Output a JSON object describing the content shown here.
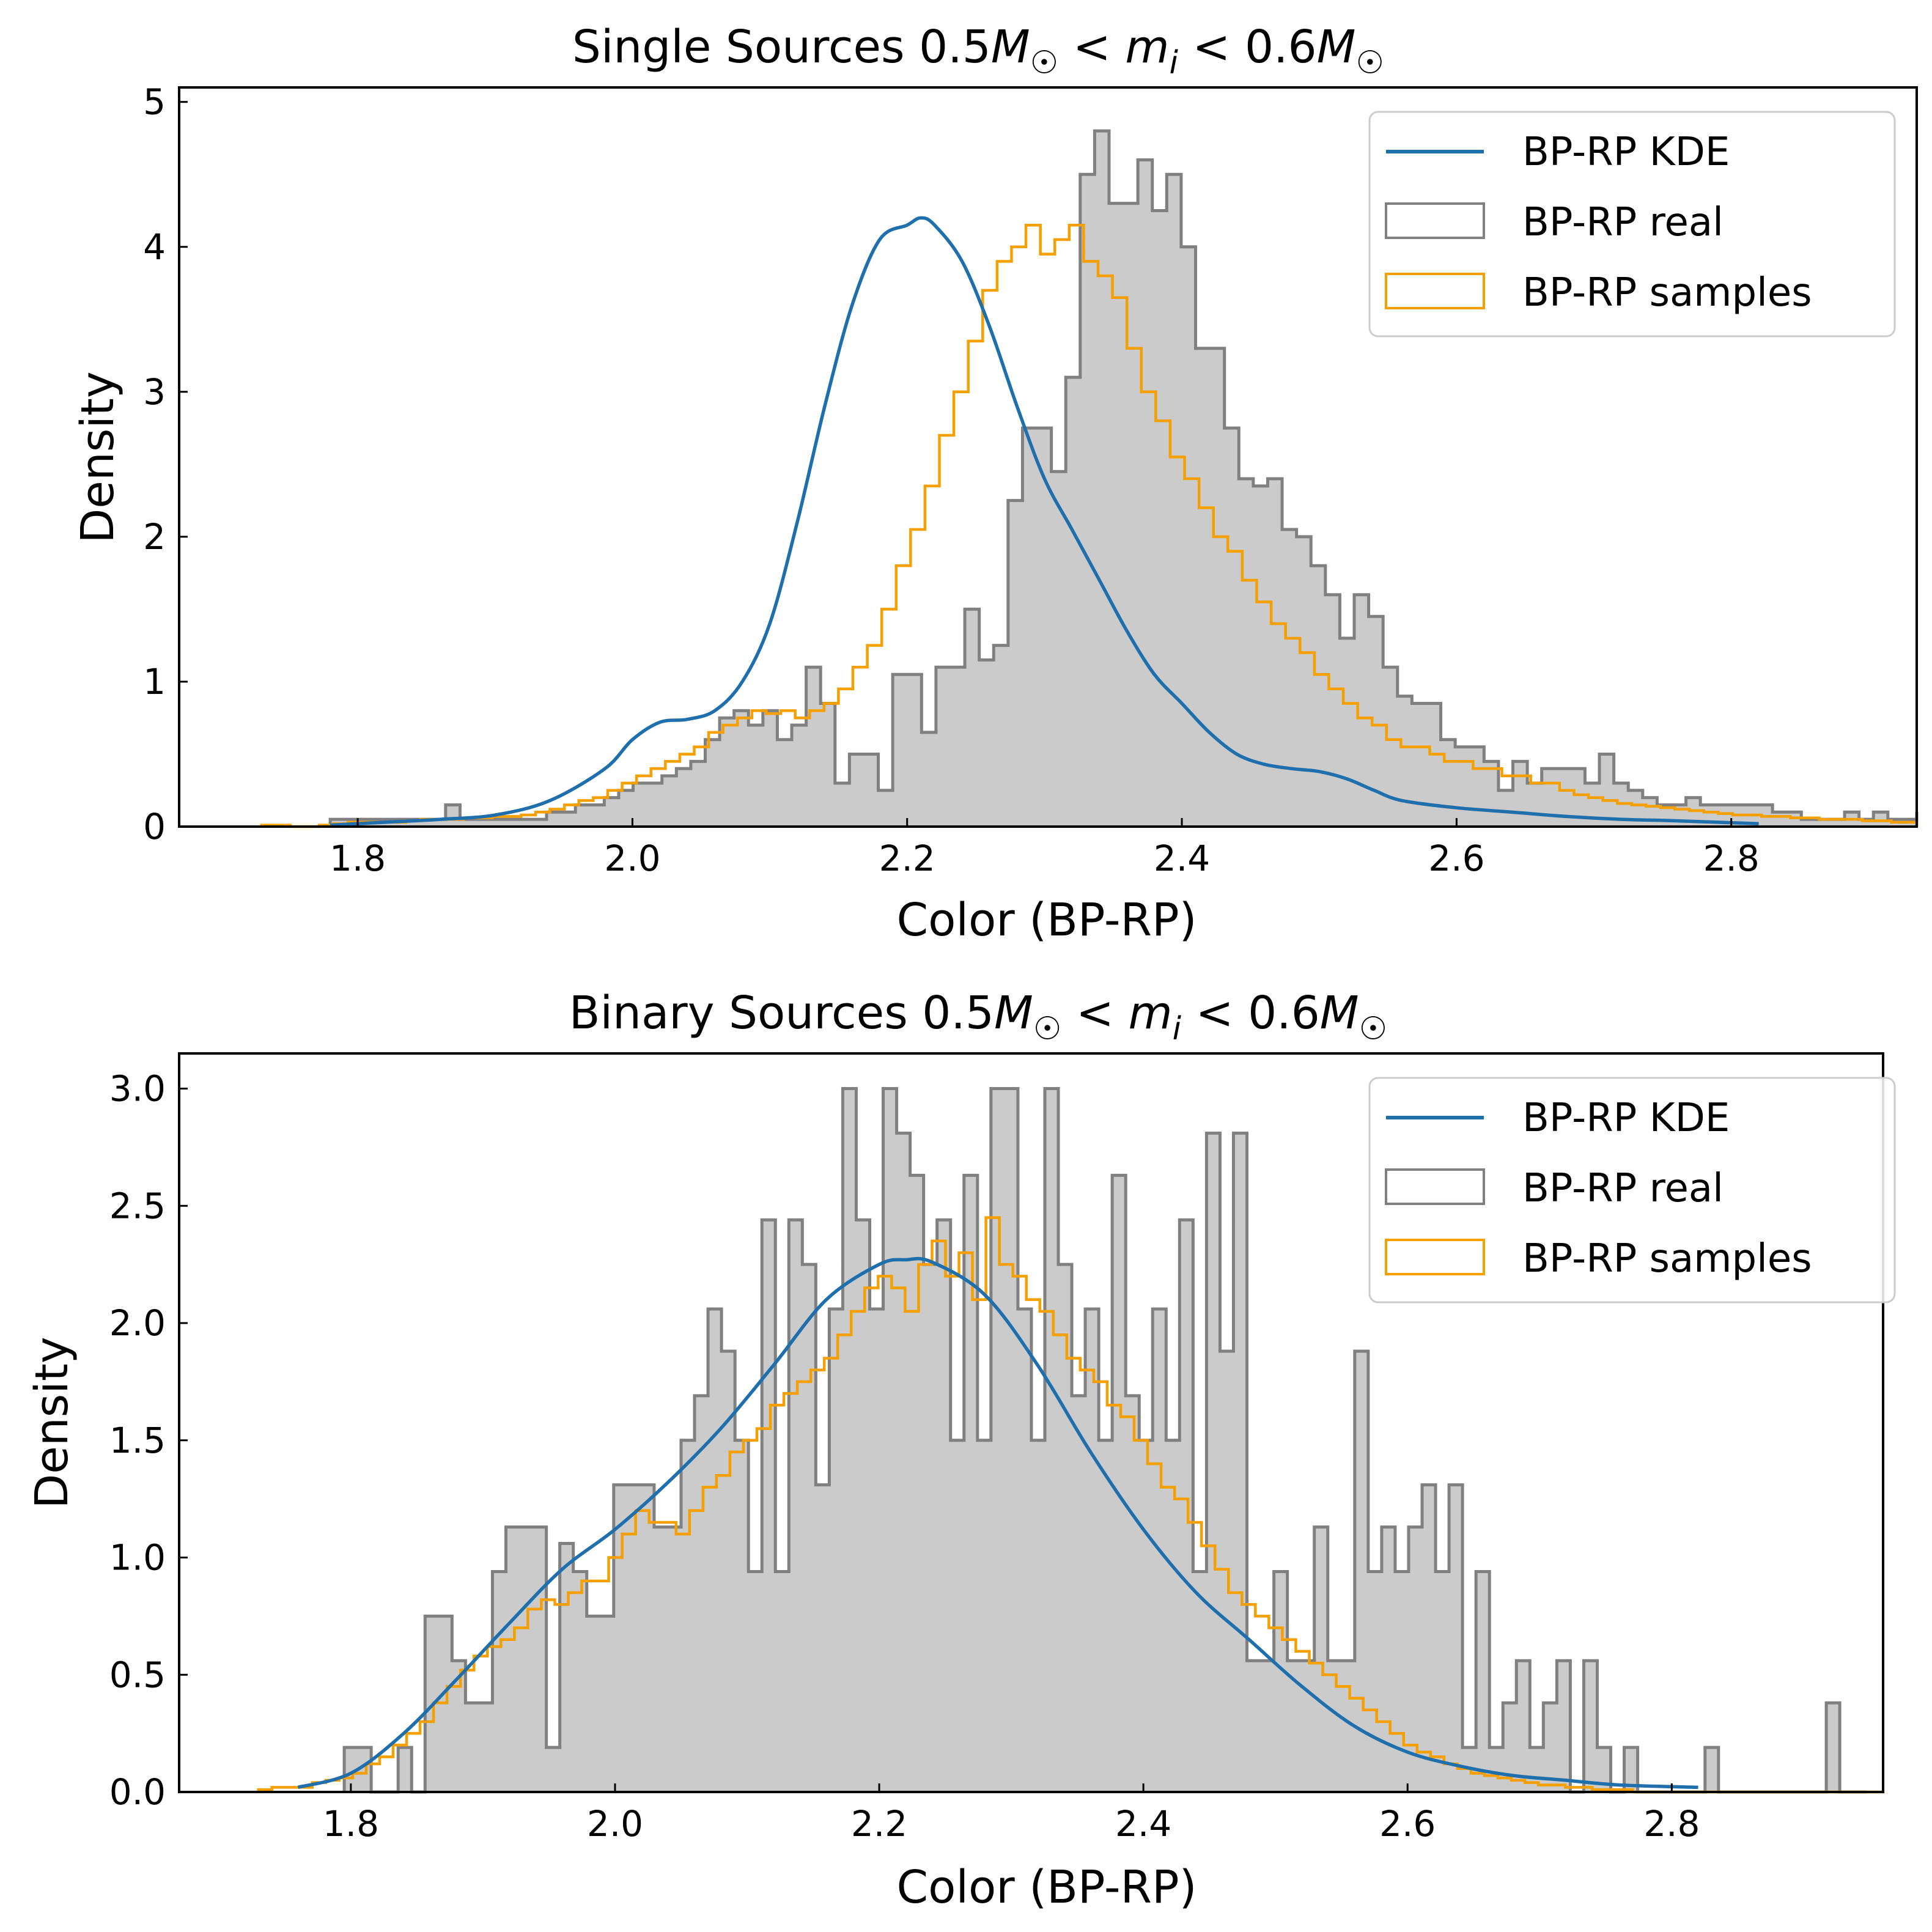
{
  "colors": {
    "kde": "#1f6fad",
    "real_edge": "#808080",
    "real_fill": "#cbcbcb",
    "samples": "#f5a000"
  },
  "chart_data": [
    {
      "type": "histogram",
      "title": "Single Sources 0.5M☉ < mᵢ < 0.6M☉",
      "title_parts": {
        "prefix": "Single Sources 0.5",
        "M": "M",
        "sun": "☉",
        "lt": " < ",
        "m": "m",
        "i": "i",
        "mid": " < 0.6"
      },
      "xlabel": "Color (BP-RP)",
      "ylabel": "Density",
      "xlim": [
        1.67,
        2.935
      ],
      "ylim": [
        0,
        5.1
      ],
      "xticks": [
        1.8,
        2.0,
        2.2,
        2.4,
        2.6,
        2.8
      ],
      "xtick_labels": [
        "1.8",
        "2.0",
        "2.2",
        "2.4",
        "2.6",
        "2.8"
      ],
      "yticks": [
        0,
        1,
        2,
        3,
        4,
        5
      ],
      "ytick_labels": [
        "0",
        "1",
        "2",
        "3",
        "4",
        "5"
      ],
      "legend": {
        "position": "upper right",
        "entries": [
          "BP-RP KDE",
          "BP-RP real",
          "BP-RP samples"
        ]
      },
      "series": [
        {
          "name": "BP-RP real",
          "kind": "histogram",
          "edges_start": 1.78,
          "bin_width": 0.0105,
          "values": [
            0.05,
            0.05,
            0.05,
            0.05,
            0.05,
            0.05,
            0.05,
            0.05,
            0.15,
            0.05,
            0.05,
            0.05,
            0.05,
            0.05,
            0.05,
            0.1,
            0.1,
            0.15,
            0.15,
            0.2,
            0.25,
            0.3,
            0.3,
            0.35,
            0.4,
            0.45,
            0.6,
            0.75,
            0.8,
            0.7,
            0.8,
            0.6,
            0.7,
            1.1,
            0.85,
            0.3,
            0.5,
            0.5,
            0.25,
            1.05,
            1.05,
            0.65,
            1.1,
            1.1,
            1.5,
            1.15,
            1.25,
            2.25,
            2.75,
            2.75,
            2.45,
            3.1,
            4.5,
            4.8,
            4.3,
            4.3,
            4.6,
            4.25,
            4.5,
            4.0,
            3.3,
            3.3,
            2.75,
            2.4,
            2.35,
            2.4,
            2.05,
            2.0,
            1.8,
            1.6,
            1.3,
            1.6,
            1.45,
            1.1,
            0.9,
            0.85,
            0.85,
            0.6,
            0.55,
            0.55,
            0.45,
            0.25,
            0.45,
            0.3,
            0.4,
            0.4,
            0.4,
            0.3,
            0.5,
            0.3,
            0.25,
            0.2,
            0.15,
            0.15,
            0.2,
            0.15,
            0.15,
            0.15,
            0.15,
            0.15,
            0.1,
            0.1,
            0.05,
            0.05,
            0.05,
            0.1,
            0.05,
            0.1,
            0.05,
            0.05,
            0.05,
            0.1,
            0.05,
            0.1,
            0.05,
            0.05,
            0.05,
            0.05,
            0.05,
            0.1,
            0.05,
            0.05,
            0.05
          ]
        },
        {
          "name": "BP-RP samples",
          "kind": "histogram",
          "edges_start": 1.73,
          "bin_width": 0.0105,
          "values": [
            0.01,
            0.01,
            0.0,
            0.0,
            0.01,
            0.02,
            0.03,
            0.03,
            0.03,
            0.03,
            0.04,
            0.05,
            0.05,
            0.05,
            0.06,
            0.06,
            0.07,
            0.07,
            0.08,
            0.1,
            0.12,
            0.15,
            0.18,
            0.2,
            0.25,
            0.3,
            0.35,
            0.4,
            0.45,
            0.5,
            0.55,
            0.65,
            0.7,
            0.75,
            0.8,
            0.78,
            0.8,
            0.75,
            0.8,
            0.85,
            0.95,
            1.1,
            1.25,
            1.5,
            1.8,
            2.05,
            2.35,
            2.7,
            3.0,
            3.35,
            3.7,
            3.9,
            4.0,
            4.15,
            3.95,
            4.05,
            4.15,
            3.9,
            3.8,
            3.65,
            3.3,
            3.0,
            2.8,
            2.55,
            2.4,
            2.2,
            2.0,
            1.9,
            1.7,
            1.55,
            1.4,
            1.3,
            1.2,
            1.05,
            0.95,
            0.85,
            0.75,
            0.7,
            0.6,
            0.55,
            0.55,
            0.5,
            0.45,
            0.45,
            0.4,
            0.4,
            0.35,
            0.35,
            0.3,
            0.3,
            0.25,
            0.22,
            0.2,
            0.18,
            0.16,
            0.15,
            0.14,
            0.13,
            0.12,
            0.11,
            0.1,
            0.09,
            0.08,
            0.08,
            0.07,
            0.07,
            0.06,
            0.06,
            0.05,
            0.05,
            0.05,
            0.04,
            0.04,
            0.03,
            0.03,
            0.02,
            0.02,
            0.02,
            0.02,
            0.01,
            0.01,
            0.0,
            0.0,
            0.0,
            0.01,
            0.0,
            0.0,
            0.01
          ]
        },
        {
          "name": "BP-RP KDE",
          "kind": "line",
          "x": [
            1.78,
            1.82,
            1.86,
            1.9,
            1.94,
            1.98,
            2.0,
            2.02,
            2.04,
            2.06,
            2.08,
            2.1,
            2.12,
            2.14,
            2.16,
            2.18,
            2.2,
            2.21,
            2.22,
            2.24,
            2.26,
            2.28,
            2.3,
            2.32,
            2.34,
            2.36,
            2.38,
            2.4,
            2.42,
            2.44,
            2.46,
            2.48,
            2.5,
            2.52,
            2.54,
            2.56,
            2.6,
            2.64,
            2.68,
            2.72,
            2.76,
            2.82
          ],
          "y": [
            0.01,
            0.03,
            0.05,
            0.08,
            0.18,
            0.4,
            0.6,
            0.72,
            0.74,
            0.8,
            1.0,
            1.4,
            2.1,
            2.9,
            3.6,
            4.05,
            4.15,
            4.2,
            4.15,
            3.9,
            3.45,
            2.9,
            2.4,
            2.05,
            1.7,
            1.35,
            1.05,
            0.85,
            0.65,
            0.5,
            0.43,
            0.4,
            0.38,
            0.33,
            0.25,
            0.18,
            0.13,
            0.1,
            0.07,
            0.05,
            0.04,
            0.02
          ]
        }
      ]
    },
    {
      "type": "histogram",
      "title": "Binary Sources 0.5M☉ < mᵢ < 0.6M☉",
      "title_parts": {
        "prefix": "Binary Sources 0.5",
        "M": "M",
        "sun": "☉",
        "lt": " < ",
        "m": "m",
        "i": "i",
        "mid": " < 0.6"
      },
      "xlabel": "Color (BP-RP)",
      "ylabel": "Density",
      "xlim": [
        1.67,
        2.96
      ],
      "ylim": [
        0,
        3.15
      ],
      "xticks": [
        1.8,
        2.0,
        2.2,
        2.4,
        2.6,
        2.8
      ],
      "xtick_labels": [
        "1.8",
        "2.0",
        "2.2",
        "2.4",
        "2.6",
        "2.8"
      ],
      "yticks": [
        0.0,
        0.5,
        1.0,
        1.5,
        2.0,
        2.5,
        3.0
      ],
      "ytick_labels": [
        "0.0",
        "0.5",
        "1.0",
        "1.5",
        "2.0",
        "2.5",
        "3.0"
      ],
      "legend": {
        "position": "upper right",
        "entries": [
          "BP-RP KDE",
          "BP-RP real",
          "BP-RP samples"
        ]
      },
      "series": [
        {
          "name": "BP-RP real",
          "kind": "histogram",
          "edges_start": 1.795,
          "bin_width": 0.0102,
          "values": [
            0.19,
            0.19,
            0.0,
            0.0,
            0.19,
            0.0,
            0.75,
            0.75,
            0.56,
            0.38,
            0.38,
            0.94,
            1.13,
            1.13,
            1.13,
            0.19,
            1.06,
            0.94,
            0.75,
            0.75,
            1.31,
            1.31,
            1.31,
            1.13,
            1.13,
            1.5,
            1.69,
            2.06,
            1.88,
            1.5,
            0.94,
            2.44,
            0.94,
            2.44,
            2.25,
            1.31,
            2.06,
            3.0,
            2.44,
            2.06,
            3.0,
            2.81,
            2.63,
            2.25,
            2.44,
            1.5,
            2.63,
            1.5,
            3.0,
            3.0,
            2.06,
            1.5,
            3.0,
            2.25,
            1.69,
            2.06,
            1.5,
            2.63,
            1.69,
            1.5,
            2.06,
            1.5,
            2.44,
            0.94,
            2.81,
            1.88,
            2.81,
            0.56,
            0.56,
            0.94,
            0.56,
            0.56,
            1.13,
            0.56,
            0.56,
            1.88,
            0.94,
            1.13,
            0.94,
            1.13,
            1.31,
            0.94,
            1.31,
            0.19,
            0.94,
            0.19,
            0.38,
            0.56,
            0.19,
            0.38,
            0.56,
            0.0,
            0.56,
            0.19,
            0.0,
            0.19,
            0.0,
            0.0,
            0.0,
            0.0,
            0.0,
            0.19,
            0.0,
            0.0,
            0.0,
            0.0,
            0.0,
            0.0,
            0.0,
            0.0,
            0.38,
            0.0,
            0.0
          ]
        },
        {
          "name": "BP-RP samples",
          "kind": "histogram",
          "edges_start": 1.73,
          "bin_width": 0.0102,
          "values": [
            0.01,
            0.02,
            0.02,
            0.02,
            0.04,
            0.05,
            0.06,
            0.08,
            0.12,
            0.15,
            0.2,
            0.25,
            0.3,
            0.38,
            0.45,
            0.52,
            0.58,
            0.62,
            0.65,
            0.7,
            0.78,
            0.82,
            0.8,
            0.85,
            0.9,
            0.9,
            1.0,
            1.1,
            1.2,
            1.15,
            1.15,
            1.1,
            1.2,
            1.3,
            1.35,
            1.45,
            1.5,
            1.55,
            1.65,
            1.7,
            1.75,
            1.8,
            1.85,
            1.95,
            2.05,
            2.15,
            2.2,
            2.15,
            2.05,
            2.25,
            2.35,
            2.2,
            2.3,
            2.1,
            2.45,
            2.25,
            2.2,
            2.1,
            2.05,
            1.95,
            1.85,
            1.8,
            1.75,
            1.65,
            1.6,
            1.5,
            1.4,
            1.3,
            1.25,
            1.15,
            1.05,
            0.95,
            0.85,
            0.8,
            0.75,
            0.7,
            0.65,
            0.6,
            0.55,
            0.5,
            0.45,
            0.4,
            0.35,
            0.3,
            0.25,
            0.2,
            0.17,
            0.15,
            0.12,
            0.1,
            0.08,
            0.07,
            0.06,
            0.05,
            0.04,
            0.03,
            0.03,
            0.02,
            0.02,
            0.01,
            0.01,
            0.01,
            0.0,
            0.0,
            0.0,
            0.0,
            0.0,
            0.0,
            0.0,
            0.0,
            0.0,
            0.0,
            0.0,
            0.0,
            0.0,
            0.0,
            0.0,
            0.0,
            0.0,
            0.0,
            0.0,
            0.0,
            0.0,
            0.0,
            0.0,
            0.0,
            0.0,
            0.0,
            0.0,
            0.0,
            0.0,
            0.0,
            0.0,
            0.0,
            0.0,
            0.0,
            0.0,
            0.01
          ]
        },
        {
          "name": "BP-RP KDE",
          "kind": "line",
          "x": [
            1.76,
            1.8,
            1.84,
            1.88,
            1.92,
            1.96,
            2.0,
            2.04,
            2.08,
            2.12,
            2.16,
            2.2,
            2.22,
            2.24,
            2.28,
            2.32,
            2.36,
            2.4,
            2.44,
            2.48,
            2.52,
            2.56,
            2.6,
            2.64,
            2.68,
            2.72,
            2.76,
            2.82
          ],
          "y": [
            0.02,
            0.08,
            0.25,
            0.48,
            0.72,
            0.95,
            1.12,
            1.32,
            1.55,
            1.82,
            2.1,
            2.25,
            2.27,
            2.26,
            2.12,
            1.82,
            1.45,
            1.12,
            0.85,
            0.65,
            0.45,
            0.28,
            0.17,
            0.11,
            0.07,
            0.05,
            0.03,
            0.02
          ]
        }
      ]
    }
  ]
}
